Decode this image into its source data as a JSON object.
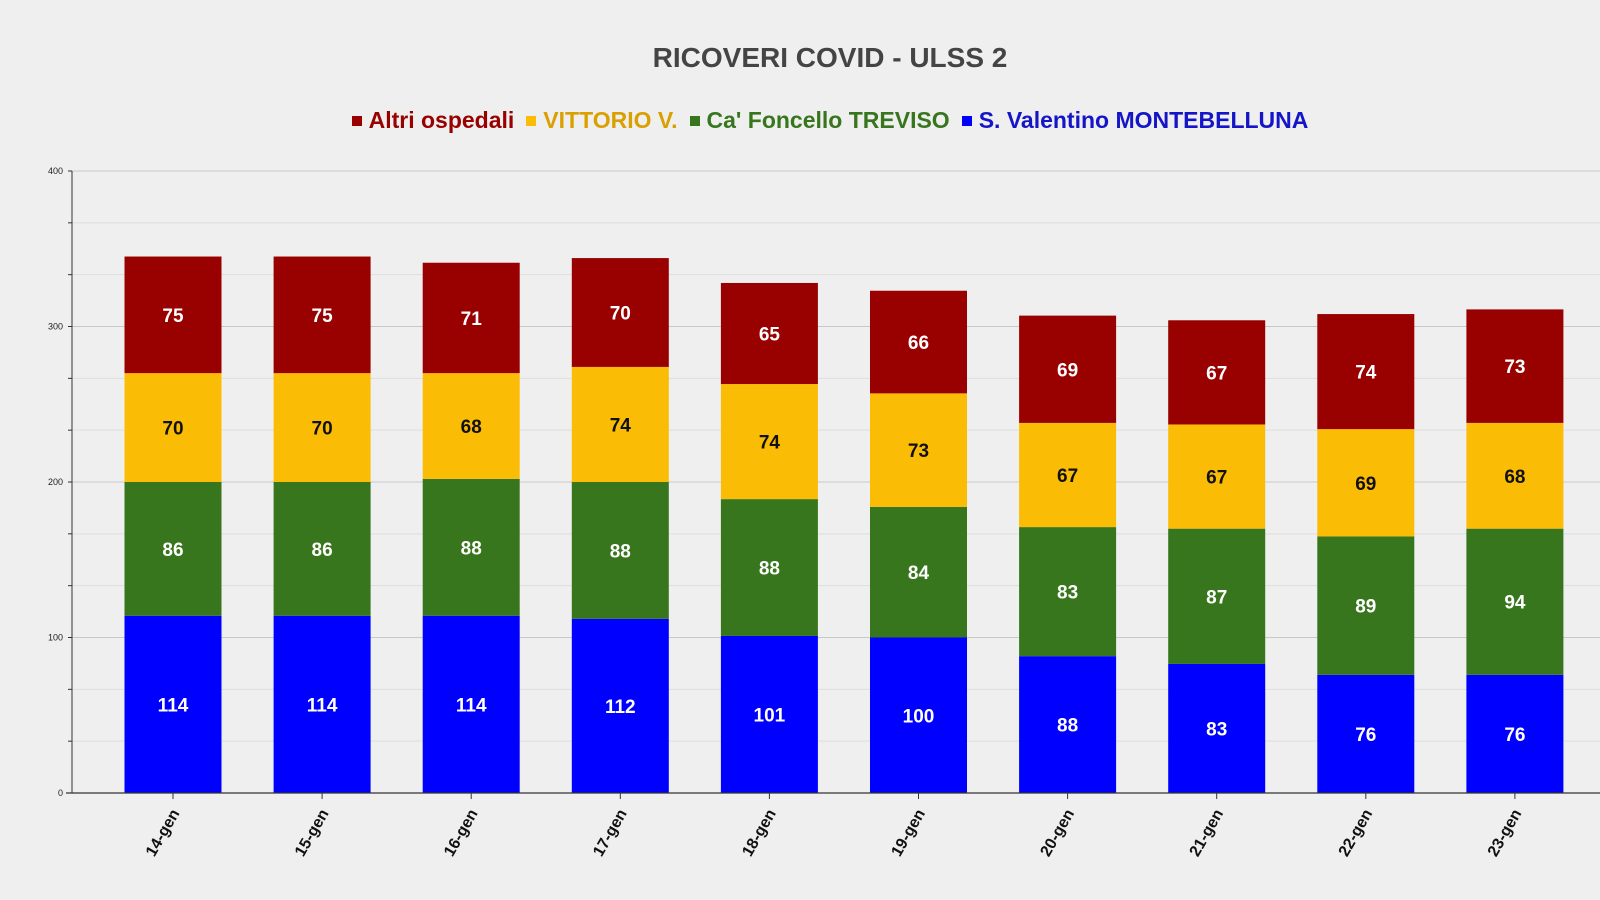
{
  "chart_data": {
    "type": "bar",
    "stacked": true,
    "title": "RICOVERI COVID - ULSS 2",
    "xlabel": "",
    "ylabel": "",
    "ylim": [
      0,
      400
    ],
    "yticks": [
      0,
      100,
      200,
      300,
      400
    ],
    "grid": true,
    "legend_position": "top-center",
    "categories": [
      "14-gen",
      "15-gen",
      "16-gen",
      "17-gen",
      "18-gen",
      "19-gen",
      "20-gen",
      "21-gen",
      "22-gen",
      "23-gen"
    ],
    "series": [
      {
        "name": "S. Valentino MONTEBELLUNA",
        "color": "#0000ff",
        "label_color": "#ffffff",
        "legend_text_color": "#1515c8",
        "values": [
          114,
          114,
          114,
          112,
          101,
          100,
          88,
          83,
          76,
          76
        ]
      },
      {
        "name": "Ca' Foncello TREVISO",
        "color": "#38761d",
        "label_color": "#ffffff",
        "legend_text_color": "#38761d",
        "values": [
          86,
          86,
          88,
          88,
          88,
          84,
          83,
          87,
          89,
          94
        ]
      },
      {
        "name": "VITTORIO V.",
        "color": "#fbbc05",
        "label_color": "#111111",
        "legend_text_color": "#d9a000",
        "values": [
          70,
          70,
          68,
          74,
          74,
          73,
          67,
          67,
          69,
          68
        ]
      },
      {
        "name": "Altri ospedali",
        "color": "#990000",
        "label_color": "#ffffff",
        "legend_text_color": "#990000",
        "values": [
          75,
          75,
          71,
          70,
          65,
          66,
          69,
          67,
          74,
          73
        ]
      }
    ],
    "legend_order": [
      "Altri ospedali",
      "VITTORIO V.",
      "Ca' Foncello TREVISO",
      "S. Valentino MONTEBELLUNA"
    ]
  }
}
